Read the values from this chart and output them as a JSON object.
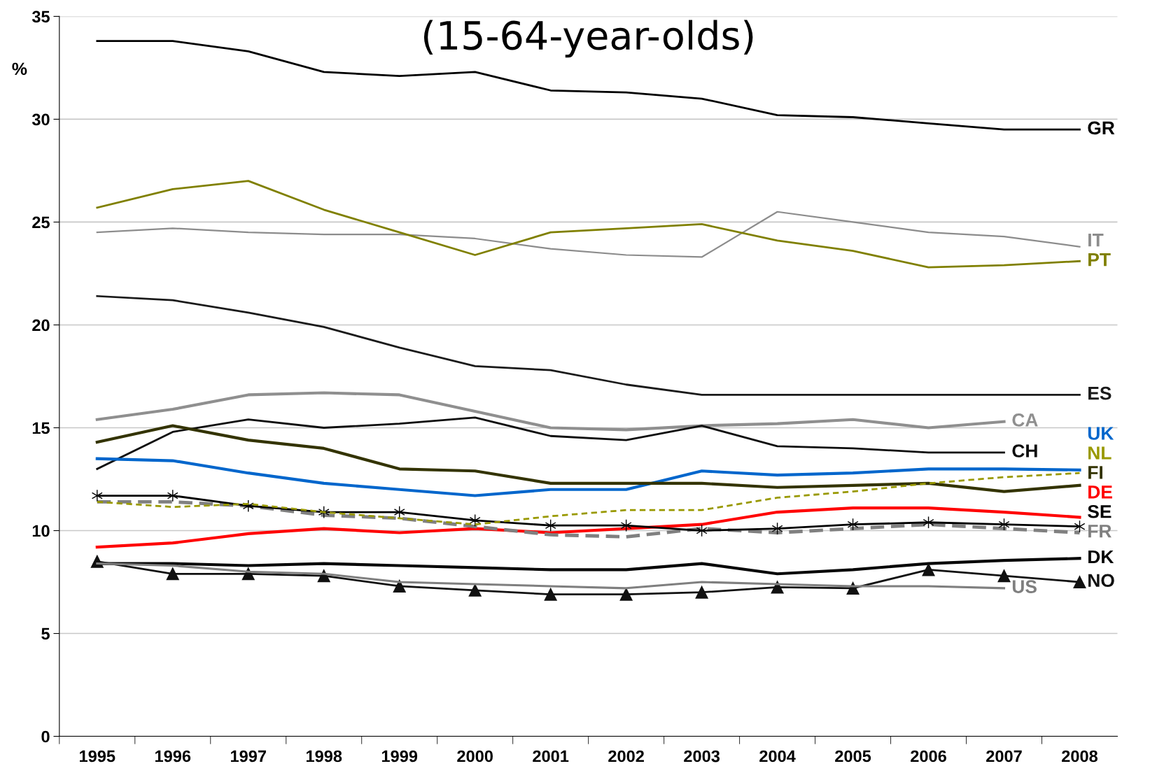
{
  "chart_data": {
    "type": "line",
    "title": "(15-64-year-olds)",
    "ylabel": "%",
    "categories": [
      "1995",
      "1996",
      "1997",
      "1998",
      "1999",
      "2000",
      "2001",
      "2002",
      "2003",
      "2004",
      "2005",
      "2006",
      "2007",
      "2008"
    ],
    "ylim": [
      0,
      35
    ],
    "yticks": [
      0,
      5,
      10,
      15,
      20,
      25,
      30,
      35
    ],
    "grid": "y",
    "legend": false,
    "series": [
      {
        "name": "GR",
        "color": "#000000",
        "values": [
          33.8,
          33.8,
          33.3,
          32.3,
          32.1,
          32.3,
          31.4,
          31.3,
          31.0,
          30.2,
          30.1,
          29.8,
          29.5,
          29.5
        ]
      },
      {
        "name": "IT",
        "color": "#8c8c8c",
        "values": [
          24.5,
          24.7,
          24.5,
          24.4,
          24.4,
          24.2,
          23.7,
          23.4,
          23.3,
          25.5,
          25.0,
          24.5,
          24.3,
          23.8
        ]
      },
      {
        "name": "PT",
        "color": "#808000",
        "values": [
          25.7,
          26.6,
          27.0,
          25.6,
          24.5,
          23.4,
          24.5,
          24.7,
          24.9,
          24.1,
          23.6,
          22.8,
          22.9,
          23.1
        ]
      },
      {
        "name": "ES",
        "color": "#1a1a1a",
        "values": [
          21.4,
          21.2,
          20.6,
          19.9,
          18.9,
          18.0,
          17.8,
          17.1,
          16.6,
          16.6,
          16.6,
          16.6,
          16.6,
          16.6
        ]
      },
      {
        "name": "CA",
        "color": "#8f8f8f",
        "values": [
          15.4,
          15.9,
          16.6,
          16.7,
          16.6,
          15.8,
          15.0,
          14.9,
          15.1,
          15.2,
          15.4,
          15.0,
          15.3,
          null
        ]
      },
      {
        "name": "CH",
        "color": "#0d0d0d",
        "values": [
          13.0,
          14.8,
          15.4,
          15.0,
          15.2,
          15.5,
          14.6,
          14.4,
          15.1,
          14.1,
          14.0,
          13.8,
          13.8,
          null
        ]
      },
      {
        "name": "UK",
        "color": "#0066cc",
        "values": [
          13.5,
          13.4,
          12.8,
          12.3,
          12.0,
          11.7,
          12.0,
          12.0,
          12.9,
          12.7,
          12.8,
          13.0,
          13.0,
          12.95
        ]
      },
      {
        "name": "NL",
        "color": "#999900",
        "line_style": "dotted",
        "values": [
          11.4,
          11.15,
          11.3,
          10.9,
          10.6,
          10.3,
          10.7,
          11.0,
          11.0,
          11.6,
          11.9,
          12.3,
          12.6,
          12.8
        ]
      },
      {
        "name": "FI",
        "color": "#333300",
        "values": [
          14.3,
          15.1,
          14.4,
          14.0,
          13.0,
          12.9,
          12.3,
          12.3,
          12.3,
          12.1,
          12.2,
          12.3,
          11.9,
          12.2
        ]
      },
      {
        "name": "DE",
        "color": "#ff0000",
        "values": [
          9.2,
          9.4,
          9.85,
          10.1,
          9.9,
          10.1,
          9.9,
          10.1,
          10.3,
          10.9,
          11.1,
          11.1,
          10.9,
          10.65
        ]
      },
      {
        "name": "FR",
        "color": "#808080",
        "line_style": "dashed",
        "values": [
          11.4,
          11.4,
          11.2,
          10.75,
          10.6,
          10.2,
          9.8,
          9.7,
          10.1,
          9.9,
          10.1,
          10.3,
          10.1,
          9.9
        ]
      },
      {
        "name": "SE",
        "color": "#000000",
        "marker": "cross",
        "values": [
          11.7,
          11.7,
          11.2,
          10.9,
          10.9,
          10.5,
          10.25,
          10.25,
          10.0,
          10.1,
          10.3,
          10.4,
          10.3,
          10.2
        ]
      },
      {
        "name": "DK",
        "color": "#050505",
        "values": [
          8.4,
          8.4,
          8.3,
          8.4,
          8.3,
          8.2,
          8.1,
          8.1,
          8.4,
          7.9,
          8.1,
          8.4,
          8.55,
          8.65
        ]
      },
      {
        "name": "NO",
        "color": "#111111",
        "marker": "triangle",
        "values": [
          8.5,
          7.9,
          7.9,
          7.8,
          7.3,
          7.1,
          6.9,
          6.9,
          7.0,
          7.25,
          7.2,
          8.1,
          7.8,
          7.5
        ]
      },
      {
        "name": "US",
        "color": "#7f7f7f",
        "values": [
          8.4,
          8.3,
          8.0,
          7.9,
          7.5,
          7.4,
          7.3,
          7.2,
          7.5,
          7.4,
          7.3,
          7.3,
          7.2,
          null
        ]
      }
    ]
  }
}
